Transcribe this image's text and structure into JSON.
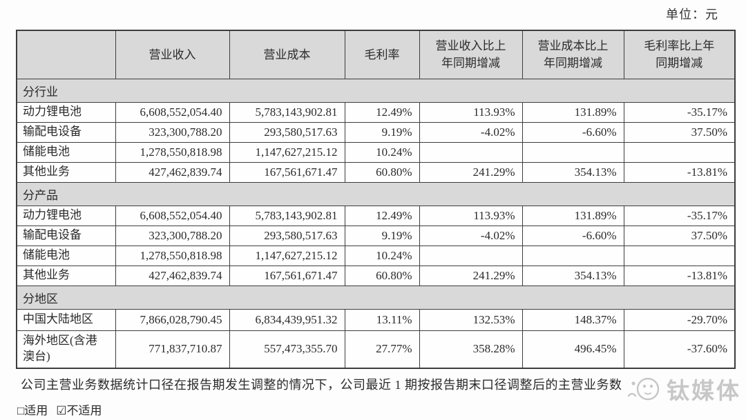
{
  "page": {
    "unit_label": "单位：元"
  },
  "table": {
    "columns": [
      {
        "id": "category",
        "label": ""
      },
      {
        "id": "revenue",
        "label": "营业收入"
      },
      {
        "id": "cost",
        "label": "营业成本"
      },
      {
        "id": "gross-margin",
        "label": "毛利率"
      },
      {
        "id": "revenue-yoy",
        "label": "营业收入比上\n年同期增减"
      },
      {
        "id": "cost-yoy",
        "label": "营业成本比上\n年同期增减"
      },
      {
        "id": "margin-yoy",
        "label": "毛利率比上年\n同期增减"
      }
    ],
    "sections": [
      {
        "id": "by-industry",
        "title": "分行业",
        "rows": [
          {
            "label": "动力锂电池",
            "values": [
              "6,608,552,054.40",
              "5,783,143,902.81",
              "12.49%",
              "113.93%",
              "131.89%",
              "-35.17%"
            ]
          },
          {
            "label": "输配电设备",
            "values": [
              "323,300,788.20",
              "293,580,517.63",
              "9.19%",
              "-4.02%",
              "-6.60%",
              "37.50%"
            ]
          },
          {
            "label": "储能电池",
            "values": [
              "1,278,550,818.98",
              "1,147,627,215.12",
              "10.24%",
              "",
              "",
              ""
            ]
          },
          {
            "label": "其他业务",
            "values": [
              "427,462,839.74",
              "167,561,671.47",
              "60.80%",
              "241.29%",
              "354.13%",
              "-13.81%"
            ]
          }
        ]
      },
      {
        "id": "by-product",
        "title": "分产品",
        "rows": [
          {
            "label": "动力锂电池",
            "values": [
              "6,608,552,054.40",
              "5,783,143,902.81",
              "12.49%",
              "113.93%",
              "131.89%",
              "-35.17%"
            ]
          },
          {
            "label": "输配电设备",
            "values": [
              "323,300,788.20",
              "293,580,517.63",
              "9.19%",
              "-4.02%",
              "-6.60%",
              "37.50%"
            ]
          },
          {
            "label": "储能电池",
            "values": [
              "1,278,550,818.98",
              "1,147,627,215.12",
              "10.24%",
              "",
              "",
              ""
            ]
          },
          {
            "label": "其他业务",
            "values": [
              "427,462,839.74",
              "167,561,671.47",
              "60.80%",
              "241.29%",
              "354.13%",
              "-13.81%"
            ]
          }
        ]
      },
      {
        "id": "by-region",
        "title": "分地区",
        "rows": [
          {
            "label": "中国大陆地区",
            "values": [
              "7,866,028,790.45",
              "6,834,439,951.32",
              "13.11%",
              "132.53%",
              "148.37%",
              "-29.70%"
            ]
          },
          {
            "label": "海外地区(含港\n澳台)",
            "values": [
              "771,837,710.87",
              "557,473,355.70",
              "27.77%",
              "358.28%",
              "496.45%",
              "-37.60%"
            ]
          }
        ]
      }
    ]
  },
  "footer": {
    "note": "公司主营业务数据统计口径在报告期发生调整的情况下，公司最近 1 期按报告期末口径调整后的主营业务数",
    "applicable": "□适用",
    "not_applicable": "☑不适用"
  },
  "watermark": {
    "text": "钛媒体"
  },
  "colors": {
    "header_bg": "#d9d9d9",
    "border": "#3c3c3c",
    "watermark": "#c7c7c7"
  }
}
